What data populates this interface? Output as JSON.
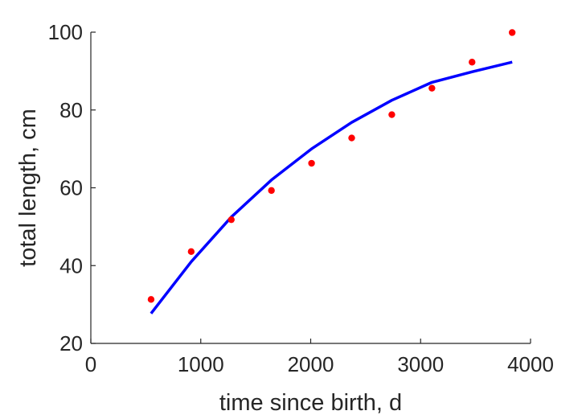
{
  "chart_data": {
    "type": "scatter",
    "xlabel": "time since birth, d",
    "ylabel": "total length, cm",
    "xlim": [
      0,
      4000
    ],
    "ylim": [
      20,
      100
    ],
    "xticks": [
      0,
      1000,
      2000,
      3000,
      4000
    ],
    "yticks": [
      20,
      40,
      60,
      80,
      100
    ],
    "grid": false,
    "legend": "none",
    "series": [
      {
        "kind": "points",
        "color": "#ff0000",
        "x": [
          548,
          913,
          1278,
          1643,
          2008,
          2373,
          2738,
          3103,
          3468,
          3833
        ],
        "y": [
          31.3,
          43.6,
          51.8,
          59.3,
          66.3,
          72.8,
          78.8,
          85.6,
          92.3,
          99.9
        ]
      },
      {
        "kind": "fit-curve",
        "color": "#0000ff",
        "x": [
          548,
          913,
          1278,
          1643,
          2008,
          2373,
          2738,
          3103,
          3468,
          3833
        ],
        "y": [
          27.7,
          41.0,
          52.5,
          62.0,
          70.0,
          76.8,
          82.5,
          87.1,
          89.8,
          92.3
        ]
      }
    ]
  }
}
